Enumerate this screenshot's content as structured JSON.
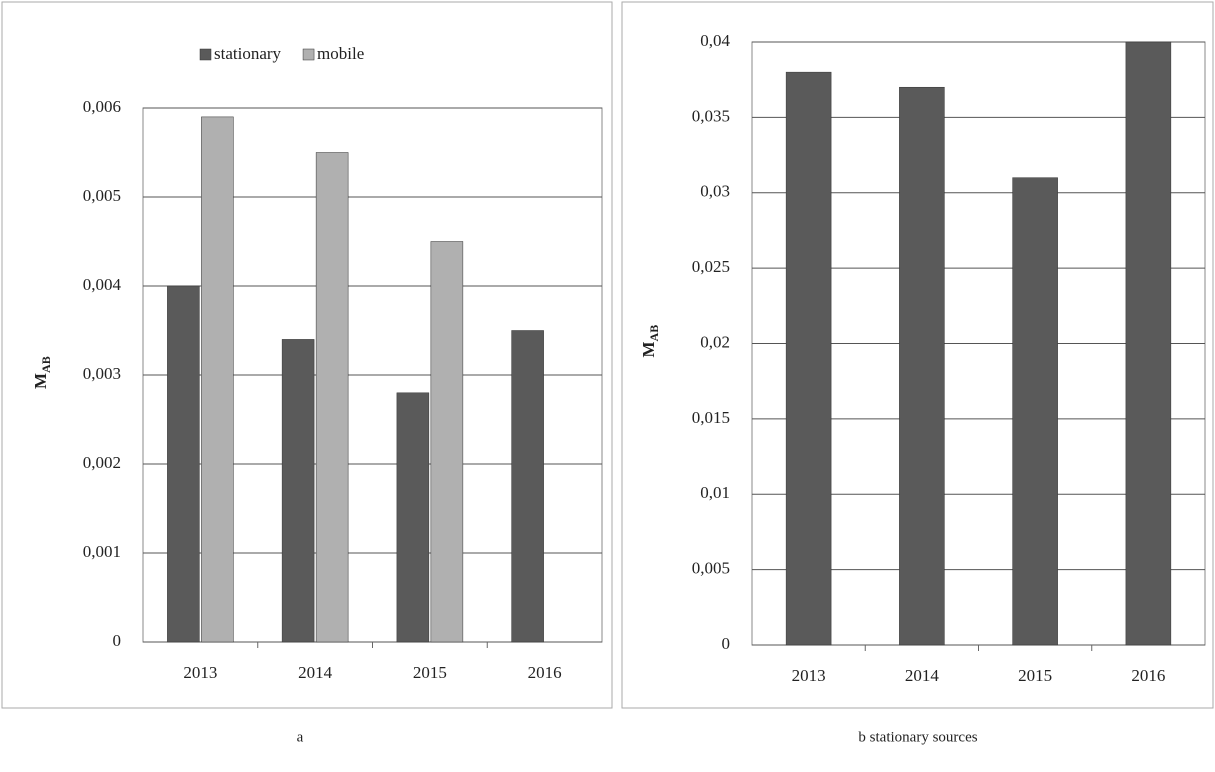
{
  "chart_data": [
    {
      "type": "bar",
      "caption": "a",
      "y_label": "M",
      "y_label_sub": "AB",
      "categories": [
        "2013",
        "2014",
        "2015",
        "2016"
      ],
      "series": [
        {
          "name": "stationary",
          "color": "#5a5a5a",
          "values": [
            0.004,
            0.0034,
            0.0028,
            0.0035
          ]
        },
        {
          "name": "mobile",
          "color": "#b0b0b0",
          "values": [
            0.0059,
            0.0055,
            0.0045,
            null
          ]
        }
      ],
      "ylim": [
        0,
        0.006
      ],
      "yticks": [
        0,
        {
          "value": 0.001,
          "label": "0,001"
        },
        {
          "value": 0.002,
          "label": "0,002"
        },
        {
          "value": 0.003,
          "label": "0,003"
        },
        {
          "value": 0.004,
          "label": "0,004"
        },
        {
          "value": 0.005,
          "label": "0,005"
        },
        {
          "value": 0.006,
          "label": "0,006"
        }
      ],
      "grid": true,
      "legend": "top"
    },
    {
      "type": "bar",
      "caption": "b stationary sources",
      "y_label": "M",
      "y_label_sub": "AB",
      "categories": [
        "2013",
        "2014",
        "2015",
        "2016"
      ],
      "values": [
        0.038,
        0.037,
        0.031,
        0.04
      ],
      "color": "#5a5a5a",
      "ylim": [
        0,
        0.04
      ],
      "yticks": [
        0,
        {
          "value": 0.005,
          "label": "0,005"
        },
        {
          "value": 0.01,
          "label": "0,01"
        },
        {
          "value": 0.015,
          "label": "0,015"
        },
        {
          "value": 0.02,
          "label": "0,02"
        },
        {
          "value": 0.025,
          "label": "0,025"
        },
        {
          "value": 0.03,
          "label": "0,03"
        },
        {
          "value": 0.035,
          "label": "0,035"
        },
        {
          "value": 0.04,
          "label": "0,04"
        }
      ],
      "grid": true
    }
  ]
}
